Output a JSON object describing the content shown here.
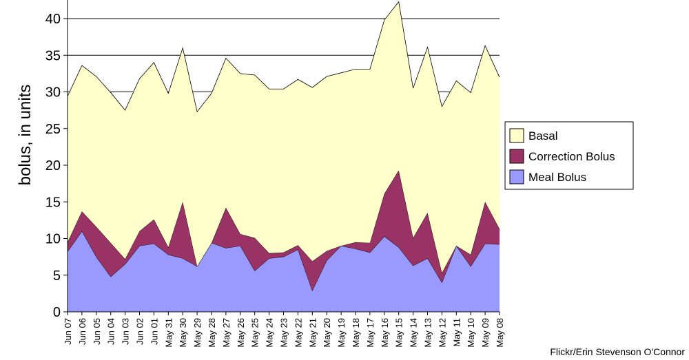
{
  "chart_data": {
    "type": "area",
    "stacked": true,
    "ylabel": "bolus, in units",
    "ylim": [
      0,
      42
    ],
    "yticks": [
      0,
      5,
      10,
      15,
      20,
      25,
      30,
      35,
      40
    ],
    "grid": true,
    "legend_position": "right",
    "categories": [
      "Jun 07",
      "Jun 06",
      "Jun 05",
      "Jun 04",
      "Jun 03",
      "Jun 02",
      "Jun 01",
      "May 31",
      "May 30",
      "May 29",
      "May 28",
      "May 27",
      "May 26",
      "May 25",
      "May 24",
      "May 23",
      "May 22",
      "May 21",
      "May 20",
      "May 19",
      "May 18",
      "May 17",
      "May 16",
      "May 15",
      "May 14",
      "May 13",
      "May 12",
      "May 11",
      "May 10",
      "May 09",
      "May 08"
    ],
    "series": [
      {
        "name": "Meal Bolus",
        "color": "#9999ff",
        "values": [
          8.2,
          11.0,
          7.5,
          4.8,
          6.5,
          9.0,
          9.3,
          7.8,
          7.3,
          6.2,
          9.4,
          8.7,
          9.0,
          5.6,
          7.3,
          7.5,
          8.5,
          2.9,
          7.0,
          9.0,
          8.6,
          8.1,
          10.3,
          8.8,
          6.3,
          7.3,
          4.0,
          9.0,
          6.2,
          9.3,
          9.2
        ]
      },
      {
        "name": "Correction Bolus",
        "color": "#993366",
        "values": [
          1.3,
          2.7,
          4.1,
          4.6,
          0.7,
          2.0,
          3.3,
          1.0,
          7.7,
          0,
          0,
          5.5,
          1.6,
          4.5,
          0.7,
          0.6,
          0.6,
          4.0,
          1.3,
          0,
          0.9,
          1.3,
          5.8,
          10.5,
          3.8,
          6.2,
          1.3,
          0,
          1.6,
          5.7,
          2.1
        ]
      },
      {
        "name": "Basal",
        "color": "#ffffcc",
        "values": [
          19.9,
          19.9,
          20.5,
          20.5,
          20.3,
          20.8,
          21.4,
          21.0,
          21.0,
          21.1,
          20.4,
          20.4,
          21.9,
          22.2,
          22.4,
          22.3,
          22.6,
          23.7,
          23.8,
          23.6,
          23.6,
          23.7,
          23.7,
          23.0,
          20.4,
          22.6,
          22.7,
          22.5,
          22.1,
          21.3,
          20.7
        ]
      }
    ],
    "legend": [
      "Basal",
      "Correction Bolus",
      "Meal Bolus"
    ]
  },
  "credit": "Flickr/Erin Stevenson O'Connor"
}
